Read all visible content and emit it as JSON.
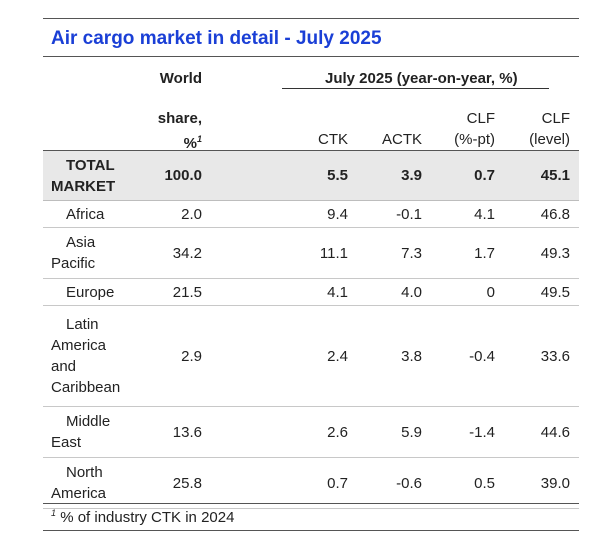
{
  "title": "Air cargo market in detail - July 2025",
  "header": {
    "world": "World",
    "share": "share,",
    "share_unit": "%",
    "footnote_mark": "1",
    "group": "July 2025 (year-on-year, %)",
    "ctk": "CTK",
    "actk": "ACTK",
    "clf_pt_1": "CLF",
    "clf_pt_2": "(%-pt)",
    "clf_lvl_1": "CLF",
    "clf_lvl_2": "(level)"
  },
  "total": {
    "label_1": "TOTAL",
    "label_2": "MARKET",
    "share": "100.0",
    "ctk": "5.5",
    "actk": "3.9",
    "clf_pt": "0.7",
    "clf_level": "45.1"
  },
  "rows": [
    {
      "region": [
        "Africa"
      ],
      "share": "2.0",
      "ctk": "9.4",
      "actk": "-0.1",
      "clf_pt": "4.1",
      "clf_level": "46.8"
    },
    {
      "region": [
        "Asia",
        "Pacific"
      ],
      "share": "34.2",
      "ctk": "11.1",
      "actk": "7.3",
      "clf_pt": "1.7",
      "clf_level": "49.3"
    },
    {
      "region": [
        "Europe"
      ],
      "share": "21.5",
      "ctk": "4.1",
      "actk": "4.0",
      "clf_pt": "0",
      "clf_level": "49.5"
    },
    {
      "region": [
        "Latin",
        "America",
        "and",
        "Caribbean"
      ],
      "share": "2.9",
      "ctk": "2.4",
      "actk": "3.8",
      "clf_pt": "-0.4",
      "clf_level": "33.6"
    },
    {
      "region": [
        "Middle",
        "East"
      ],
      "share": "13.6",
      "ctk": "2.6",
      "actk": "5.9",
      "clf_pt": "-1.4",
      "clf_level": "44.6"
    },
    {
      "region": [
        "North",
        "America"
      ],
      "share": "25.8",
      "ctk": "0.7",
      "actk": "-0.6",
      "clf_pt": "0.5",
      "clf_level": "39.0"
    }
  ],
  "footnote": {
    "mark": "1",
    "text": "% of industry CTK in 2024"
  },
  "colors": {
    "title": "#1a3fd6",
    "total_bg": "#e8e8e8",
    "rule": "#555555"
  }
}
